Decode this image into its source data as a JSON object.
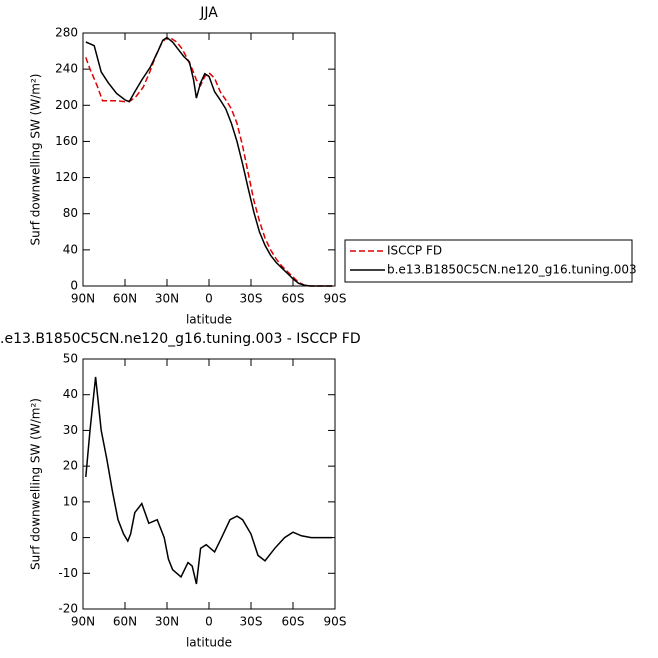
{
  "chart_data": [
    {
      "type": "line",
      "title": "JJA",
      "xlabel": "latitude",
      "ylabel": "Surf downwelling SW (W/m²)",
      "xlim": [
        90,
        -90
      ],
      "xticks": [
        {
          "value": 90,
          "label": "90N"
        },
        {
          "value": 60,
          "label": "60N"
        },
        {
          "value": 30,
          "label": "30N"
        },
        0,
        {
          "value": -30,
          "label": "30S"
        },
        {
          "value": -60,
          "label": "60S"
        },
        {
          "value": -90,
          "label": "90S"
        }
      ],
      "ylim": [
        0,
        280
      ],
      "yticks": [
        0,
        40,
        80,
        120,
        160,
        200,
        240,
        280
      ],
      "legend": "outside-right",
      "series": [
        {
          "name": "ISCCP FD",
          "color": "#e00000",
          "line_style": "dashed",
          "x": [
            88,
            85,
            80,
            76,
            70,
            65,
            60,
            56,
            52,
            47,
            42,
            38,
            34,
            31,
            27,
            23,
            19,
            15,
            12,
            9,
            6,
            3,
            0,
            -4,
            -8,
            -12,
            -16,
            -20,
            -24,
            -28,
            -32,
            -36,
            -40,
            -44,
            -48,
            -52,
            -56,
            -60,
            -64,
            -68,
            -72,
            -76,
            -80,
            -88
          ],
          "values": [
            253,
            240,
            222,
            205,
            205,
            205,
            204,
            205,
            210,
            220,
            238,
            255,
            268,
            274,
            274,
            270,
            262,
            250,
            240,
            228,
            222,
            232,
            236,
            230,
            215,
            206,
            196,
            180,
            155,
            125,
            95,
            72,
            53,
            40,
            30,
            22,
            16,
            10,
            4,
            1,
            0,
            0,
            0,
            0
          ]
        },
        {
          "name": "b.e13.B1850C5CN.ne120_g16.tuning.003",
          "color": "#000000",
          "line_style": "solid",
          "x": [
            88,
            85,
            82,
            77,
            72,
            66,
            60,
            57,
            53,
            48,
            42,
            37,
            33,
            30,
            26,
            22,
            18,
            14,
            11,
            9,
            6,
            3,
            0,
            -4,
            -8,
            -12,
            -16,
            -20,
            -24,
            -28,
            -32,
            -36,
            -40,
            -44,
            -48,
            -52,
            -56,
            -60,
            -64,
            -68,
            -72,
            -76,
            -80,
            -88
          ],
          "values": [
            270,
            268,
            266,
            237,
            225,
            213,
            206,
            204,
            215,
            228,
            242,
            258,
            272,
            275,
            270,
            262,
            254,
            248,
            228,
            208,
            225,
            235,
            232,
            215,
            206,
            196,
            180,
            160,
            135,
            108,
            82,
            60,
            45,
            34,
            26,
            20,
            14,
            8,
            3,
            1,
            0,
            0,
            0,
            0
          ]
        }
      ]
    },
    {
      "type": "line",
      "title": ".e13.B1850C5CN.ne120_g16.tuning.003 - ISCCP FD",
      "xlabel": "latitude",
      "ylabel": "Surf downwelling SW (W/m²)",
      "xlim": [
        90,
        -90
      ],
      "xticks": [
        {
          "value": 90,
          "label": "90N"
        },
        {
          "value": 60,
          "label": "60N"
        },
        {
          "value": 30,
          "label": "30N"
        },
        0,
        {
          "value": -30,
          "label": "30S"
        },
        {
          "value": -60,
          "label": "60S"
        },
        {
          "value": -90,
          "label": "90S"
        }
      ],
      "ylim": [
        -20,
        50
      ],
      "yticks": [
        -20,
        -10,
        0,
        10,
        20,
        30,
        40,
        50
      ],
      "color": "#000000",
      "x": [
        88,
        85,
        81,
        77,
        73,
        69,
        65,
        61,
        58,
        56,
        53,
        48,
        43,
        37,
        32,
        29,
        26,
        20,
        15,
        12,
        9,
        6,
        2,
        -4,
        -9,
        -15,
        -20,
        -24,
        -30,
        -35,
        -40,
        -47,
        -54,
        -60,
        -66,
        -73,
        -80,
        -88
      ],
      "values": [
        17,
        30,
        45,
        30,
        22,
        13,
        5,
        1,
        -1,
        1,
        7,
        9.5,
        4,
        5,
        0,
        -6,
        -9,
        -11,
        -7,
        -8,
        -13,
        -3,
        -2,
        -4,
        0,
        5,
        6,
        5,
        1,
        -5,
        -6.5,
        -3,
        0,
        1.5,
        0.5,
        0,
        0,
        0
      ]
    }
  ]
}
